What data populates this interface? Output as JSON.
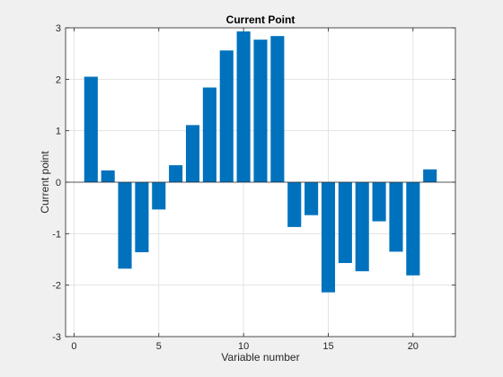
{
  "chart_data": {
    "type": "bar",
    "title": "Current Point",
    "xlabel": "Variable number",
    "ylabel": "Current point",
    "x": [
      1,
      2,
      3,
      4,
      5,
      6,
      7,
      8,
      9,
      10,
      11,
      12,
      13,
      14,
      15,
      16,
      17,
      18,
      19,
      20,
      21
    ],
    "values": [
      2.05,
      0.23,
      -1.68,
      -1.36,
      -0.53,
      0.33,
      1.11,
      1.84,
      2.56,
      2.93,
      2.77,
      2.84,
      -0.87,
      -0.64,
      -2.14,
      -1.57,
      -1.73,
      -0.76,
      -1.35,
      -1.81,
      0.25
    ],
    "xlim": [
      -0.5,
      22.5
    ],
    "ylim": [
      -3,
      3
    ],
    "xticks": [
      0,
      5,
      10,
      15,
      20
    ],
    "yticks": [
      -3,
      -2,
      -1,
      0,
      1,
      2,
      3
    ],
    "grid": true,
    "legend": "none",
    "colors": {
      "bar": "#0072BD",
      "plot_background": "#ffffff",
      "figure_background": "#f0f0f0",
      "grid": "#e3e3e3",
      "axis": "#262626"
    }
  }
}
